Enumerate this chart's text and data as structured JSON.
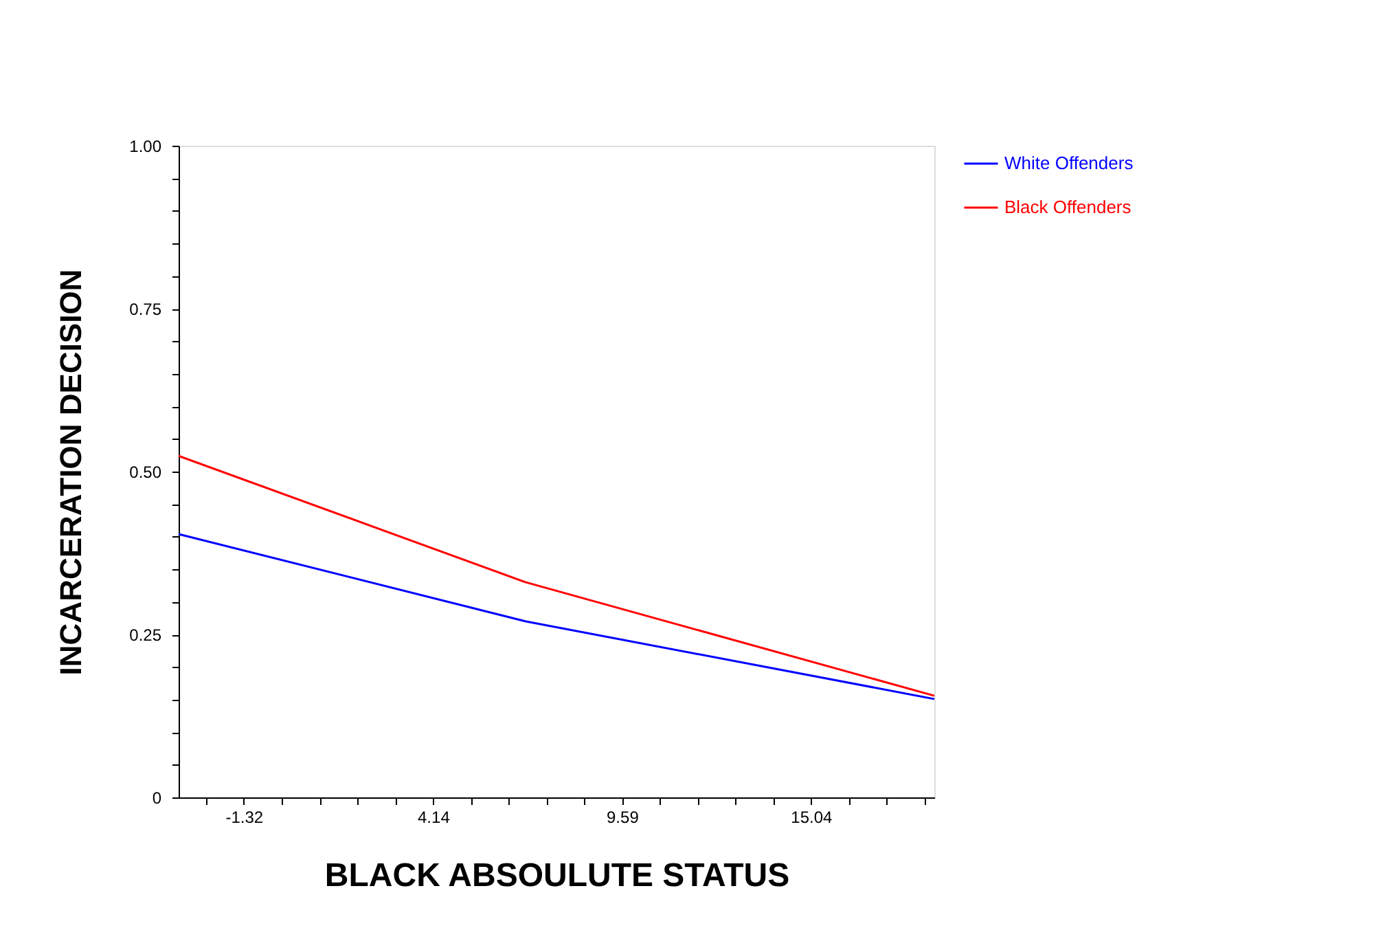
{
  "chart_data": {
    "type": "line",
    "xlabel": "BLACK ABSOULUTE STATUS",
    "ylabel": "INCARCERATION DECISION",
    "x": [
      -3.2,
      6.82,
      18.6
    ],
    "series": [
      {
        "name": "White Offenders",
        "color": "#0000ff",
        "values": [
          0.404,
          0.27,
          0.151
        ]
      },
      {
        "name": "Black Offenders",
        "color": "#ff0000",
        "values": [
          0.524,
          0.33,
          0.156
        ]
      }
    ],
    "xlim": [
      -3.2,
      18.6
    ],
    "xticks": [
      {
        "value": -2.41,
        "label": null
      },
      -1.32,
      {
        "value": -0.23,
        "label": null
      },
      {
        "value": 0.87,
        "label": null
      },
      {
        "value": 1.96,
        "label": null
      },
      {
        "value": 3.05,
        "label": null
      },
      4.14,
      {
        "value": 5.23,
        "label": null
      },
      {
        "value": 6.32,
        "label": null
      },
      {
        "value": 7.41,
        "label": null
      },
      {
        "value": 8.5,
        "label": null
      },
      9.59,
      {
        "value": 10.68,
        "label": null
      },
      {
        "value": 11.77,
        "label": null
      },
      {
        "value": 12.86,
        "label": null
      },
      {
        "value": 13.95,
        "label": null
      },
      15.04,
      {
        "value": 16.13,
        "label": null
      },
      {
        "value": 17.22,
        "label": null
      },
      {
        "value": 18.31,
        "label": null
      }
    ],
    "ylim": [
      0,
      1
    ],
    "yticks": [
      {
        "value": 0,
        "label": "0"
      },
      {
        "value": 0.05,
        "label": null
      },
      {
        "value": 0.1,
        "label": null
      },
      {
        "value": 0.15,
        "label": null
      },
      {
        "value": 0.2,
        "label": null
      },
      {
        "value": 0.25,
        "label": "0.25"
      },
      {
        "value": 0.3,
        "label": null
      },
      {
        "value": 0.35,
        "label": null
      },
      {
        "value": 0.4,
        "label": null
      },
      {
        "value": 0.45,
        "label": null
      },
      {
        "value": 0.5,
        "label": "0.50"
      },
      {
        "value": 0.55,
        "label": null
      },
      {
        "value": 0.6,
        "label": null
      },
      {
        "value": 0.65,
        "label": null
      },
      {
        "value": 0.7,
        "label": null
      },
      {
        "value": 0.75,
        "label": "0.75"
      },
      {
        "value": 0.8,
        "label": null
      },
      {
        "value": 0.85,
        "label": null
      },
      {
        "value": 0.9,
        "label": null
      },
      {
        "value": 0.95,
        "label": null
      },
      {
        "value": 1.0,
        "label": "1.00"
      }
    ],
    "grid": false,
    "legend": "top right",
    "marker": "none",
    "line_style": "solid"
  }
}
